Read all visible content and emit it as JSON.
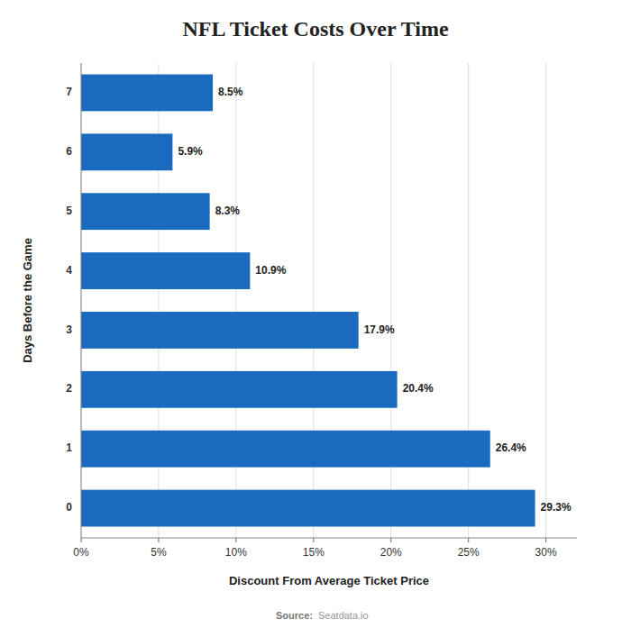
{
  "chart_data": {
    "type": "bar",
    "orientation": "horizontal",
    "title": "NFL Ticket Costs Over Time",
    "x_label": "Discount From Average Ticket Price",
    "y_label": "Days Before the Game",
    "annotations": [
      "Source:",
      "Seatdata.io"
    ],
    "categories": [
      "0",
      "1",
      "2",
      "3",
      "4",
      "5",
      "6",
      "7"
    ],
    "values": [
      29.3,
      26.4,
      20.4,
      17.9,
      10.9,
      8.3,
      5.9,
      8.5
    ],
    "value_labels": [
      "29.3%",
      "26.4%",
      "20.4%",
      "17.9%",
      "10.9%",
      "8.3%",
      "5.9%",
      "8.5%"
    ],
    "data_labels": true,
    "color": "#1a6bbf",
    "xlim": [
      0,
      32
    ],
    "xticks": [
      {
        "value": 0,
        "label": "0%"
      },
      {
        "value": 5,
        "label": "5%"
      },
      {
        "value": 10,
        "label": "10%"
      },
      {
        "value": 15,
        "label": "15%"
      },
      {
        "value": 20,
        "label": "20%"
      },
      {
        "value": 25,
        "label": "25%"
      },
      {
        "value": 30,
        "label": "30%"
      }
    ],
    "grid": true
  }
}
